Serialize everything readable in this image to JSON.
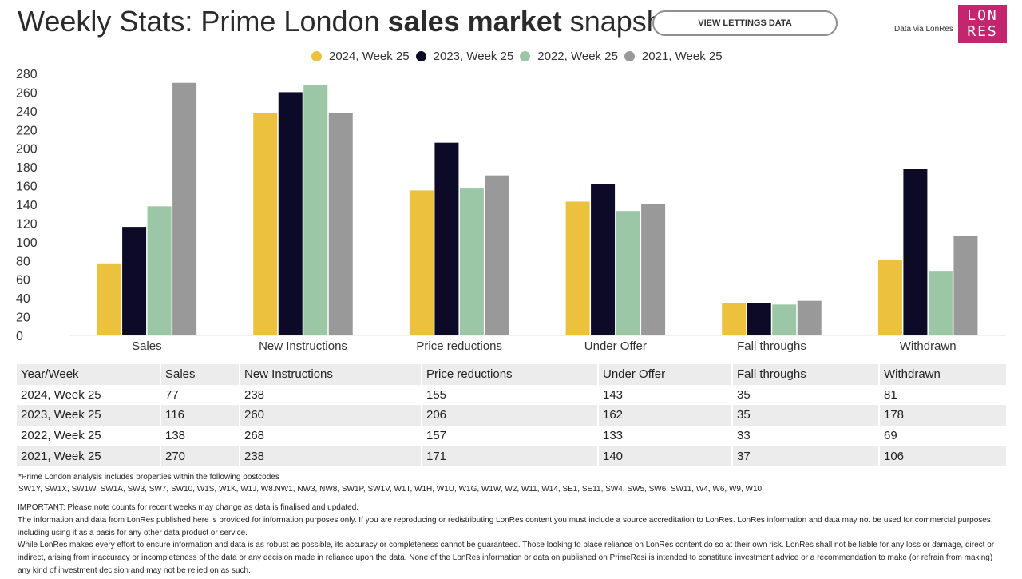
{
  "header": {
    "title_prefix": "Weekly Stats: Prime London ",
    "title_bold": "sales market",
    "title_suffix": " snapshot",
    "view_button": "VIEW LETTINGS DATA",
    "data_via": "Data via LonRes",
    "logo_line1": "LON",
    "logo_line2": "RES"
  },
  "chart_data": {
    "type": "bar",
    "categories": [
      "Sales",
      "New Instructions",
      "Price reductions",
      "Under Offer",
      "Fall throughs",
      "Withdrawn"
    ],
    "series": [
      {
        "name": "2024, Week 25",
        "color": "#ecc13e",
        "values": [
          77,
          238,
          155,
          143,
          35,
          81
        ]
      },
      {
        "name": "2023, Week 25",
        "color": "#0c0a26",
        "values": [
          116,
          260,
          206,
          162,
          35,
          178
        ]
      },
      {
        "name": "2022, Week 25",
        "color": "#9cc7a7",
        "values": [
          138,
          268,
          157,
          133,
          33,
          69
        ]
      },
      {
        "name": "2021, Week 25",
        "color": "#999999",
        "values": [
          270,
          238,
          171,
          140,
          37,
          106
        ]
      }
    ],
    "ylim": [
      0,
      280
    ],
    "yticks": [
      280,
      260,
      240,
      220,
      200,
      180,
      160,
      140,
      120,
      100,
      80,
      60,
      40,
      20,
      0
    ],
    "legend_position": "top-center",
    "grid": false
  },
  "table": {
    "headers": [
      "Year/Week",
      "Sales",
      "New Instructions",
      "Price reductions",
      "Under Offer",
      "Fall throughs",
      "Withdrawn"
    ],
    "rows": [
      [
        "2024, Week 25",
        "77",
        "238",
        "155",
        "143",
        "35",
        "81"
      ],
      [
        "2023, Week 25",
        "116",
        "260",
        "206",
        "162",
        "35",
        "178"
      ],
      [
        "2022, Week 25",
        "138",
        "268",
        "157",
        "133",
        "33",
        "69"
      ],
      [
        "2021, Week 25",
        "270",
        "238",
        "171",
        "140",
        "37",
        "106"
      ]
    ]
  },
  "footnotes": {
    "postcodes_intro": "*Prime London analysis includes properties within the following postcodes",
    "postcodes_list": "SW1Y, SW1X, SW1W, SW1A, SW3, SW7, SW10, W1S, W1K, W1J, W8.NW1, NW3, NW8, SW1P, SW1V, W1T, W1H, W1U, W1G, W1W, W2, W11, W14, SE1, SE11, SW4, SW5, SW6, SW11, W4, W6, W9, W10.",
    "important": "IMPORTANT: Please note counts for recent weeks may change as data is finalised and updated.",
    "info_line": "The information and data from LonRes published here is provided for information purposes only. If you are reproducing or redistributing LonRes content you must include a source accreditation to LonRes. LonRes information and data may not be used for commercial purposes, including using it as a basis for any other data product or service.",
    "disclaimer": "While LonRes makes every effort to ensure information and data is as robust as possible, its accuracy or completeness cannot be guaranteed. Those looking to place reliance on LonRes content do so at their own risk. LonRes shall not be liable for any loss or damage, direct or indirect, arising from inaccuracy or incompleteness of the data or any decision made in reliance upon the data. None of the LonRes information or data on published on PrimeResi is intended to constitute investment advice or a recommendation to make (or refrain from making) any kind of investment decision and may not be relied on as such."
  }
}
